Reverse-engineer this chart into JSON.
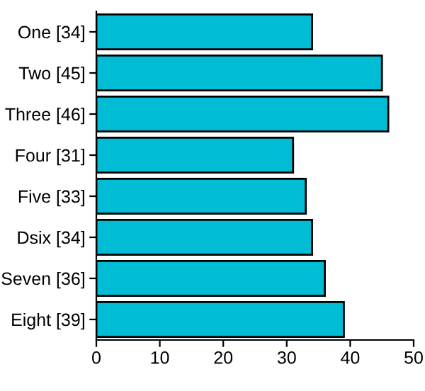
{
  "chart_data": {
    "type": "bar",
    "orientation": "horizontal",
    "categories": [
      "One [34]",
      "Two [45]",
      "Three [46]",
      "Four [31]",
      "Five [33]",
      "Dsix [34]",
      "Seven [36]",
      "Eight [39]"
    ],
    "values": [
      34,
      45,
      46,
      31,
      33,
      34,
      36,
      39
    ],
    "color": "#00bcd4",
    "xlim": [
      0,
      50
    ],
    "xticks": [
      0,
      10,
      20,
      30,
      40,
      50
    ],
    "grid": false,
    "legend": false
  }
}
